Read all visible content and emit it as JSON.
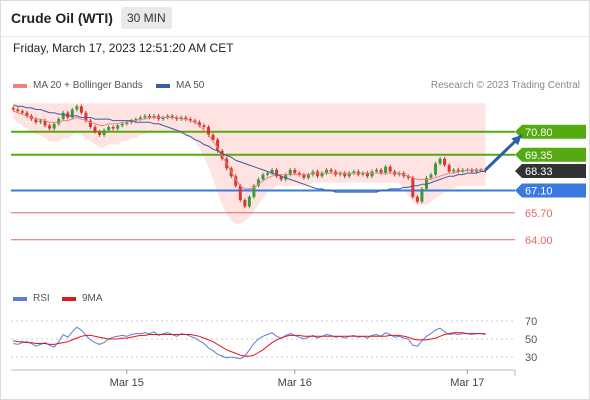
{
  "header": {
    "title": "Crude Oil (WTI)",
    "timeframe": "30 MIN",
    "datetime": "Friday, March 17, 2023 12:51:20 AM CET"
  },
  "legend": {
    "ma20_label": "MA 20 + Bollinger Bands",
    "ma50_label": "MA 50",
    "copyright": "Research © 2023 Trading Central",
    "rsi_label": "RSI",
    "rsi_ma_label": "9MA"
  },
  "colors": {
    "up": "#3a9a3a",
    "down": "#d23a2a",
    "ma20": "#f08080",
    "ma50": "#3d5d9f",
    "bollinger": "#ffd6d6",
    "resistance": "#55aa11",
    "pivot": "#3a7ae0",
    "support": "#e46666",
    "current": "#333333"
  },
  "chart_data": [
    {
      "type": "candlestick",
      "ylim": [
        62.6,
        72.8
      ],
      "x_ticks": [
        {
          "label": "Mar 15",
          "index": 25
        },
        {
          "label": "Mar 16",
          "index": 62
        },
        {
          "label": "Mar 17",
          "index": 100
        }
      ],
      "levels": [
        {
          "value": 70.8,
          "label": "70.80",
          "kind": "resistance"
        },
        {
          "value": 69.35,
          "label": "69.35",
          "kind": "resistance"
        },
        {
          "value": 68.33,
          "label": "68.33",
          "kind": "current"
        },
        {
          "value": 67.1,
          "label": "67.10",
          "kind": "pivot"
        },
        {
          "value": 65.7,
          "label": "65.70",
          "kind": "support"
        },
        {
          "value": 64.0,
          "label": "64.00",
          "kind": "support"
        }
      ],
      "arrow": {
        "from": [
          104,
          68.4
        ],
        "to": [
          112,
          70.6
        ]
      },
      "close": [
        72.2,
        72.1,
        72.0,
        71.8,
        71.6,
        71.4,
        71.5,
        71.2,
        71.0,
        71.3,
        71.6,
        72.0,
        71.7,
        72.2,
        72.4,
        72.0,
        71.5,
        71.1,
        70.8,
        70.6,
        70.9,
        71.1,
        71.0,
        71.2,
        71.3,
        71.4,
        71.5,
        71.6,
        71.7,
        71.8,
        71.7,
        71.8,
        71.6,
        71.7,
        71.8,
        71.7,
        71.6,
        71.7,
        71.6,
        71.5,
        71.4,
        71.2,
        71.1,
        70.6,
        70.3,
        69.6,
        69.1,
        68.5,
        68.0,
        67.4,
        66.5,
        66.1,
        66.7,
        67.4,
        67.8,
        68.1,
        68.2,
        68.4,
        68.0,
        67.8,
        68.1,
        68.4,
        68.2,
        68.1,
        67.9,
        68.1,
        68.3,
        68.0,
        68.2,
        68.4,
        68.3,
        68.1,
        68.2,
        68.0,
        68.2,
        68.3,
        68.1,
        68.2,
        68.0,
        68.3,
        68.4,
        68.2,
        68.6,
        68.3,
        68.1,
        68.2,
        68.0,
        67.9,
        66.7,
        66.4,
        67.2,
        67.9,
        68.1,
        68.8,
        69.1,
        68.7,
        68.3,
        68.4,
        68.3,
        68.4,
        68.4,
        68.3,
        68.4,
        68.4,
        68.33
      ],
      "ma20": [
        72.1,
        72.0,
        71.9,
        71.8,
        71.7,
        71.6,
        71.6,
        71.5,
        71.4,
        71.4,
        71.4,
        71.5,
        71.5,
        71.6,
        71.7,
        71.6,
        71.5,
        71.4,
        71.3,
        71.2,
        71.2,
        71.3,
        71.3,
        71.3,
        71.4,
        71.4,
        71.5,
        71.5,
        71.6,
        71.6,
        71.7,
        71.7,
        71.7,
        71.7,
        71.7,
        71.7,
        71.7,
        71.6,
        71.6,
        71.5,
        71.4,
        71.2,
        70.9,
        70.6,
        70.2,
        69.8,
        69.3,
        68.8,
        68.3,
        67.8,
        67.4,
        67.2,
        67.2,
        67.3,
        67.5,
        67.7,
        67.9,
        68.0,
        68.1,
        68.1,
        68.1,
        68.1,
        68.1,
        68.1,
        68.1,
        68.1,
        68.2,
        68.2,
        68.2,
        68.2,
        68.2,
        68.2,
        68.2,
        68.2,
        68.2,
        68.2,
        68.2,
        68.2,
        68.2,
        68.2,
        68.2,
        68.2,
        68.2,
        68.2,
        68.2,
        68.2,
        68.1,
        68.0,
        67.9,
        67.8,
        67.8,
        67.8,
        67.8,
        67.9,
        68.0,
        68.1,
        68.2,
        68.2,
        68.3,
        68.3,
        68.4,
        68.4,
        68.4,
        68.4,
        68.4
      ],
      "ma50": [
        72.5,
        72.4,
        72.4,
        72.3,
        72.3,
        72.2,
        72.2,
        72.1,
        72.0,
        72.0,
        71.9,
        71.9,
        71.8,
        71.8,
        71.8,
        71.7,
        71.7,
        71.7,
        71.6,
        71.6,
        71.6,
        71.6,
        71.5,
        71.5,
        71.5,
        71.5,
        71.5,
        71.4,
        71.4,
        71.4,
        71.4,
        71.3,
        71.3,
        71.2,
        71.1,
        71.0,
        70.9,
        70.8,
        70.6,
        70.5,
        70.3,
        70.2,
        70.0,
        69.9,
        69.7,
        69.6,
        69.4,
        69.3,
        69.2,
        69.0,
        68.9,
        68.8,
        68.7,
        68.6,
        68.5,
        68.4,
        68.3,
        68.2,
        68.1,
        68.0,
        67.9,
        67.8,
        67.7,
        67.6,
        67.5,
        67.4,
        67.3,
        67.2,
        67.2,
        67.1,
        67.1,
        67.0,
        67.0,
        67.0,
        67.0,
        67.0,
        67.0,
        67.0,
        67.0,
        67.0,
        67.0,
        67.1,
        67.1,
        67.2,
        67.2,
        67.2,
        67.3,
        67.3,
        67.4,
        67.4,
        67.5,
        67.5,
        67.6,
        67.7,
        67.8,
        67.9,
        68.0,
        68.0,
        68.1,
        68.1,
        68.2,
        68.2,
        68.2,
        68.3,
        68.3
      ],
      "bb_upper": [
        72.6,
        72.6,
        72.6,
        72.6,
        72.6,
        72.6,
        72.6,
        72.6,
        72.6,
        72.6,
        72.6,
        72.6,
        72.6,
        72.6,
        72.6,
        72.6,
        72.6,
        72.6,
        72.6,
        72.6,
        72.6,
        72.6,
        72.6,
        72.6,
        72.6,
        72.6,
        72.6,
        72.6,
        72.6,
        72.6,
        72.6,
        72.6,
        72.6,
        72.6,
        72.6,
        72.6,
        72.6,
        72.6,
        72.6,
        72.6,
        72.6,
        72.6,
        72.6,
        72.6,
        72.6,
        72.6,
        72.6,
        72.6,
        72.6,
        72.6,
        72.6,
        72.6,
        72.6,
        72.6,
        72.6,
        72.6,
        72.6,
        72.6,
        72.6,
        72.6,
        72.6,
        72.6,
        72.6,
        72.6,
        72.6,
        72.6,
        72.6,
        72.6,
        72.6,
        72.6,
        72.6,
        72.6,
        72.6,
        72.6,
        72.6,
        72.6,
        72.6,
        72.6,
        72.6,
        72.6,
        72.6,
        72.6,
        72.6,
        72.6,
        72.6,
        72.6,
        72.6,
        72.6,
        72.6,
        72.6,
        72.6,
        72.6,
        72.6,
        72.6,
        72.6,
        72.6,
        72.6,
        72.6,
        72.6,
        72.6,
        72.6,
        72.6,
        72.6,
        72.6,
        72.6
      ],
      "bb_lower": [
        71.6,
        71.4,
        71.2,
        71.0,
        70.8,
        70.6,
        70.6,
        70.4,
        70.2,
        70.2,
        70.2,
        70.4,
        70.4,
        70.6,
        70.8,
        70.6,
        70.4,
        70.2,
        70.0,
        69.8,
        69.8,
        70.0,
        70.0,
        70.0,
        70.2,
        70.2,
        70.4,
        70.4,
        70.6,
        70.6,
        70.8,
        70.8,
        70.8,
        70.8,
        70.8,
        70.8,
        70.8,
        70.6,
        70.6,
        70.4,
        70.2,
        69.8,
        69.2,
        68.6,
        67.8,
        67.0,
        66.2,
        65.6,
        65.2,
        65.0,
        65.0,
        65.2,
        65.4,
        65.8,
        66.2,
        66.6,
        67.0,
        67.2,
        67.4,
        67.4,
        67.4,
        67.4,
        67.4,
        67.4,
        67.4,
        67.4,
        67.6,
        67.6,
        67.6,
        67.6,
        67.6,
        67.6,
        67.6,
        67.6,
        67.6,
        67.6,
        67.6,
        67.6,
        67.6,
        67.6,
        67.6,
        67.6,
        67.6,
        67.6,
        67.6,
        67.6,
        67.2,
        66.8,
        66.4,
        66.2,
        66.2,
        66.2,
        66.4,
        66.6,
        66.8,
        67.0,
        67.2,
        67.2,
        67.4,
        67.4,
        67.4,
        67.4,
        67.4,
        67.4,
        67.4
      ]
    },
    {
      "type": "line",
      "title": "RSI",
      "ylim": [
        20,
        80
      ],
      "y_ticks": [
        30,
        50,
        70
      ],
      "rsi": [
        45,
        44,
        46,
        47,
        45,
        42,
        44,
        46,
        43,
        41,
        47,
        55,
        52,
        58,
        63,
        60,
        54,
        49,
        46,
        44,
        46,
        50,
        52,
        53,
        54,
        53,
        55,
        56,
        56,
        57,
        56,
        58,
        54,
        56,
        57,
        55,
        53,
        56,
        55,
        53,
        51,
        48,
        45,
        40,
        37,
        33,
        31,
        29,
        30,
        29,
        28,
        31,
        38,
        45,
        50,
        53,
        55,
        57,
        53,
        51,
        54,
        56,
        54,
        52,
        50,
        52,
        54,
        51,
        53,
        55,
        54,
        52,
        53,
        51,
        53,
        54,
        52,
        53,
        51,
        54,
        55,
        53,
        57,
        55,
        52,
        53,
        51,
        50,
        43,
        42,
        48,
        53,
        56,
        60,
        62,
        58,
        55,
        56,
        55,
        56,
        56,
        55,
        56,
        56,
        55
      ],
      "rsi_ma": [
        48,
        47,
        47,
        46,
        46,
        45,
        45,
        45,
        44,
        44,
        45,
        46,
        47,
        49,
        51,
        53,
        54,
        54,
        53,
        52,
        51,
        50,
        50,
        50,
        51,
        51,
        52,
        53,
        54,
        54,
        55,
        55,
        55,
        55,
        55,
        55,
        55,
        55,
        55,
        55,
        54,
        53,
        51,
        49,
        47,
        44,
        41,
        38,
        36,
        34,
        32,
        31,
        31,
        32,
        35,
        38,
        42,
        46,
        49,
        51,
        53,
        54,
        54,
        54,
        53,
        53,
        53,
        53,
        53,
        53,
        53,
        53,
        53,
        53,
        53,
        53,
        53,
        53,
        53,
        53,
        53,
        53,
        53,
        54,
        54,
        54,
        53,
        52,
        50,
        49,
        49,
        49,
        50,
        51,
        53,
        55,
        56,
        57,
        57,
        57,
        56,
        56,
        56,
        56,
        56
      ]
    }
  ]
}
